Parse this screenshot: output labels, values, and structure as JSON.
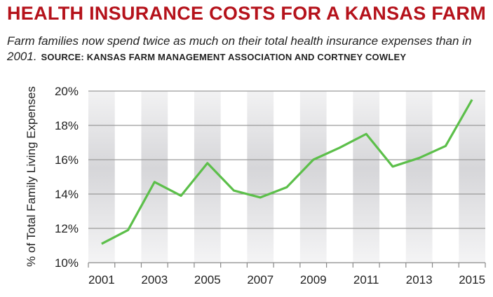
{
  "title": "HEALTH INSURANCE COSTS FOR A KANSAS FARM",
  "subtitle": "Farm families now spend twice as much on their total health insurance expenses than in 2001.",
  "source": "SOURCE: KANSAS FARM MANAGEMENT ASSOCIATION AND CORTNEY COWLEY",
  "chart_data": {
    "type": "line",
    "title": "HEALTH INSURANCE COSTS FOR A KANSAS FARM",
    "ylabel": "% of Total Family Living Expenses",
    "xlabel": "",
    "x": [
      2001,
      2002,
      2003,
      2004,
      2005,
      2006,
      2007,
      2008,
      2009,
      2010,
      2011,
      2012,
      2013,
      2014,
      2015
    ],
    "values": [
      11.1,
      11.9,
      14.7,
      13.9,
      15.8,
      14.2,
      13.8,
      14.4,
      16.0,
      16.7,
      17.5,
      15.6,
      16.1,
      16.8,
      19.5
    ],
    "ylim": [
      10,
      20
    ],
    "yticks": [
      "10%",
      "12%",
      "14%",
      "16%",
      "18%",
      "20%"
    ],
    "xticks": [
      "2001",
      "2003",
      "2005",
      "2007",
      "2009",
      "2011",
      "2013",
      "2015"
    ],
    "grid": true,
    "line_color": "#5cbf4a",
    "title_color": "#b5121b"
  }
}
